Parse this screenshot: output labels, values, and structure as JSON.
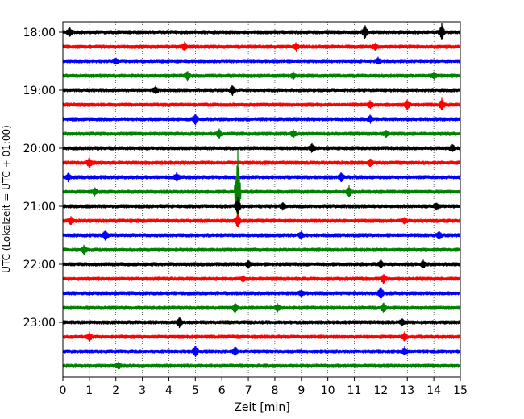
{
  "chart_data": {
    "type": "line",
    "title": "",
    "xlabel": "Zeit  [min]",
    "ylabel": "UTC (Lokalzeit = UTC + 01:00)",
    "xlim": [
      0,
      15
    ],
    "x_ticks": [
      0,
      1,
      2,
      3,
      4,
      5,
      6,
      7,
      8,
      9,
      10,
      11,
      12,
      13,
      14,
      15
    ],
    "x_tick_labels": [
      "0",
      "1",
      "2",
      "3",
      "4",
      "5",
      "6",
      "7",
      "8",
      "9",
      "10",
      "11",
      "12",
      "13",
      "14",
      "15"
    ],
    "y_tick_labels": [
      "18:00",
      "19:00",
      "20:00",
      "21:00",
      "22:00",
      "23:00"
    ],
    "grid_x": true,
    "line_colors": [
      "#000000",
      "#ff0000",
      "#0000ff",
      "#008000"
    ],
    "series": [
      {
        "start": "18:00",
        "color": "#000000",
        "events": [
          [
            0.25,
            1.5
          ],
          [
            11.4,
            2.5
          ],
          [
            14.3,
            3.0
          ]
        ]
      },
      {
        "start": "18:15",
        "color": "#ff0000",
        "events": [
          [
            4.6,
            1.4
          ],
          [
            8.8,
            1.2
          ],
          [
            11.8,
            1.2
          ]
        ]
      },
      {
        "start": "18:30",
        "color": "#0000ff",
        "events": [
          [
            2.0,
            1.0
          ],
          [
            11.9,
            1.0
          ]
        ]
      },
      {
        "start": "18:45",
        "color": "#008000",
        "events": [
          [
            4.7,
            1.5
          ],
          [
            8.7,
            1.0
          ],
          [
            14.0,
            1.0
          ]
        ]
      },
      {
        "start": "19:00",
        "color": "#000000",
        "events": [
          [
            6.4,
            1.5
          ],
          [
            3.5,
            1.0
          ]
        ]
      },
      {
        "start": "19:15",
        "color": "#ff0000",
        "events": [
          [
            11.6,
            1.2
          ],
          [
            13.0,
            1.6
          ],
          [
            14.3,
            2.0
          ]
        ]
      },
      {
        "start": "19:30",
        "color": "#0000ff",
        "events": [
          [
            5.0,
            1.8
          ],
          [
            11.6,
            1.2
          ]
        ]
      },
      {
        "start": "19:45",
        "color": "#008000",
        "events": [
          [
            5.9,
            1.5
          ],
          [
            8.7,
            1.2
          ],
          [
            12.2,
            1.0
          ]
        ]
      },
      {
        "start": "20:00",
        "color": "#000000",
        "events": [
          [
            9.4,
            1.4
          ],
          [
            14.7,
            1.0
          ]
        ]
      },
      {
        "start": "20:15",
        "color": "#ff0000",
        "events": [
          [
            1.0,
            1.6
          ],
          [
            11.6,
            1.2
          ]
        ]
      },
      {
        "start": "20:30",
        "color": "#0000ff",
        "events": [
          [
            0.2,
            1.2
          ],
          [
            4.3,
            1.4
          ],
          [
            10.5,
            1.6
          ]
        ]
      },
      {
        "start": "20:45",
        "color": "#008000",
        "events": [
          [
            6.6,
            16.0
          ],
          [
            1.2,
            1.2
          ],
          [
            10.8,
            1.8
          ]
        ]
      },
      {
        "start": "21:00",
        "color": "#000000",
        "events": [
          [
            6.6,
            3.0
          ],
          [
            8.3,
            1.0
          ],
          [
            14.1,
            1.0
          ]
        ]
      },
      {
        "start": "21:15",
        "color": "#ff0000",
        "events": [
          [
            0.3,
            1.2
          ],
          [
            6.6,
            2.5
          ],
          [
            12.9,
            1.0
          ]
        ]
      },
      {
        "start": "21:30",
        "color": "#0000ff",
        "events": [
          [
            1.6,
            1.6
          ],
          [
            9.0,
            1.2
          ],
          [
            14.2,
            1.0
          ]
        ]
      },
      {
        "start": "21:45",
        "color": "#008000",
        "events": [
          [
            0.8,
            1.5
          ]
        ]
      },
      {
        "start": "22:00",
        "color": "#000000",
        "events": [
          [
            7.0,
            1.0
          ],
          [
            12.0,
            1.2
          ],
          [
            13.6,
            1.0
          ]
        ]
      },
      {
        "start": "22:15",
        "color": "#ff0000",
        "events": [
          [
            12.1,
            1.4
          ],
          [
            6.8,
            1.0
          ]
        ]
      },
      {
        "start": "22:30",
        "color": "#0000ff",
        "events": [
          [
            12.0,
            2.2
          ],
          [
            9.0,
            1.0
          ]
        ]
      },
      {
        "start": "22:45",
        "color": "#008000",
        "events": [
          [
            6.5,
            1.6
          ],
          [
            8.1,
            1.2
          ],
          [
            12.1,
            1.4
          ]
        ]
      },
      {
        "start": "23:00",
        "color": "#000000",
        "events": [
          [
            4.4,
            1.6
          ],
          [
            12.8,
            1.0
          ]
        ]
      },
      {
        "start": "23:15",
        "color": "#ff0000",
        "events": [
          [
            1.0,
            1.4
          ],
          [
            12.9,
            1.4
          ]
        ]
      },
      {
        "start": "23:30",
        "color": "#0000ff",
        "events": [
          [
            5.0,
            1.8
          ],
          [
            6.5,
            1.4
          ],
          [
            12.9,
            1.2
          ]
        ]
      },
      {
        "start": "23:45",
        "color": "#008000",
        "events": [
          [
            2.1,
            1.0
          ]
        ]
      }
    ]
  }
}
